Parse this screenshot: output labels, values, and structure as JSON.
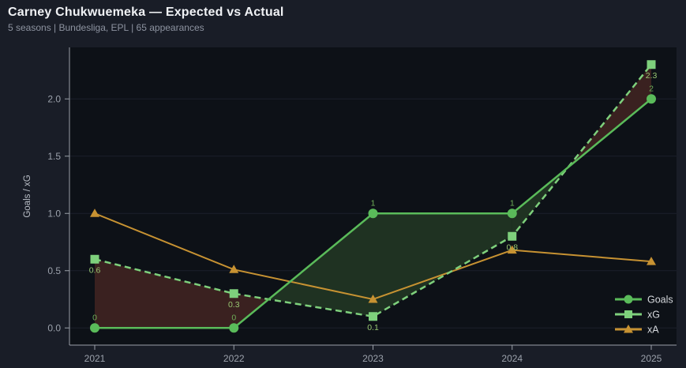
{
  "header": {
    "title": "Carney Chukwuemeka — Expected vs Actual",
    "subtitle": "5 seasons | Bundesliga, EPL | 65 appearances"
  },
  "colors": {
    "page_bg": "#191d27",
    "plot_bg": "#0d1117",
    "grid": "#1c212c",
    "spine": "#9aa0a8",
    "tick_label": "#9ba1ab",
    "axis_label": "#b9bec6",
    "legend_text": "#d6d9dd",
    "fill_overperform": "#1f3222",
    "fill_underperform": "#3a2120"
  },
  "chart_data": {
    "type": "line",
    "title": "Carney Chukwuemeka — Expected vs Actual",
    "x": [
      2021,
      2022,
      2023,
      2024,
      2025
    ],
    "x_tick_labels": [
      "2021",
      "2022",
      "2023",
      "2024",
      "2025"
    ],
    "xlabel": "",
    "ylabel": "Goals / xG",
    "y_ticks": [
      "0.0",
      "0.5",
      "1.0",
      "1.5",
      "2.0"
    ],
    "y_tick_values": [
      0.0,
      0.5,
      1.0,
      1.5,
      2.0
    ],
    "ylim": [
      -0.15,
      2.45
    ],
    "grid": "horizontal",
    "legend_position": "lower-right",
    "series": [
      {
        "name": "Goals",
        "values": [
          0,
          0,
          1,
          1,
          2
        ],
        "labels": [
          "0",
          "0",
          "1",
          "1",
          "2"
        ],
        "label_side": "above",
        "marker": "circle",
        "line_style": "solid",
        "color": "#5abb5a",
        "label_color": "#6fae58"
      },
      {
        "name": "xG",
        "values": [
          0.6,
          0.3,
          0.1,
          0.8,
          2.3
        ],
        "labels": [
          "0.6",
          "0.3",
          "0.1",
          "0.8",
          "2.3"
        ],
        "label_side": "below",
        "marker": "square",
        "line_style": "dashed",
        "color": "#7ed07c",
        "label_color": "#97c671"
      },
      {
        "name": "xA",
        "values": [
          1.0,
          0.51,
          0.25,
          0.68,
          0.58
        ],
        "labels": null,
        "label_side": null,
        "marker": "triangle",
        "line_style": "solid",
        "color": "#c79232",
        "label_color": "#c79232"
      }
    ],
    "fill_between": {
      "series_a": "Goals",
      "series_b": "xG",
      "a_above_color": "overperform",
      "b_above_color": "underperform"
    }
  }
}
